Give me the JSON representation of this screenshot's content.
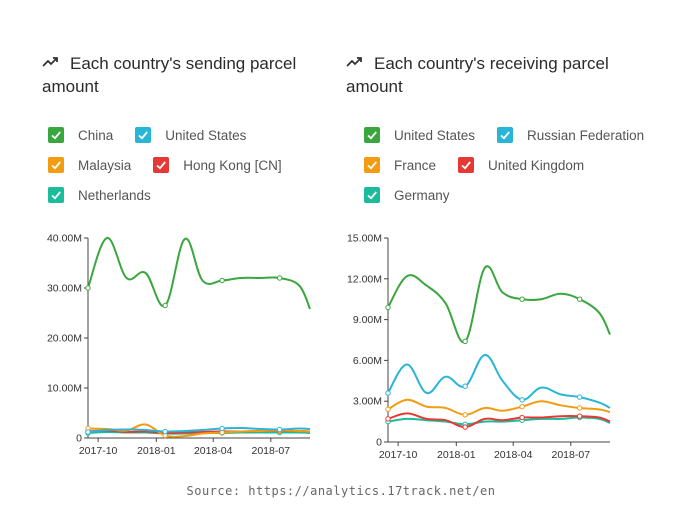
{
  "source_text": "Source: https://analytics.17track.net/en",
  "chart_data": [
    {
      "type": "line",
      "title": "Each country's sending parcel amount",
      "title_icon": "trending-up-icon",
      "x": [
        "2017-09-15",
        "2017-10-15",
        "2017-11-15",
        "2017-12-15",
        "2018-01-15",
        "2018-02-15",
        "2018-03-15",
        "2018-04-15",
        "2018-05-15",
        "2018-06-15",
        "2018-07-15",
        "2018-08-15",
        "2018-09-01"
      ],
      "xticks": [
        "2017-10",
        "2018-01",
        "2018-04",
        "2018-07"
      ],
      "yticks": [
        0,
        10000000,
        20000000,
        30000000,
        40000000
      ],
      "ytick_labels": [
        "0",
        "10.00M",
        "20.00M",
        "30.00M",
        "40.00M"
      ],
      "ylim": [
        0,
        40000000
      ],
      "series": [
        {
          "name": "China",
          "color": "#3aa63e",
          "values": [
            30000000,
            40000000,
            32000000,
            33000000,
            26500000,
            39800000,
            31500000,
            31500000,
            32000000,
            32000000,
            32000000,
            30500000,
            25800000
          ]
        },
        {
          "name": "United States",
          "color": "#29b6d6",
          "values": [
            1200000,
            1600000,
            1700000,
            1600000,
            1300000,
            1400000,
            1600000,
            1900000,
            2000000,
            1800000,
            1700000,
            1900000,
            1800000
          ]
        },
        {
          "name": "Malaysia",
          "color": "#f39c12",
          "values": [
            1900000,
            1800000,
            1500000,
            2700000,
            500000,
            400000,
            900000,
            1100000,
            1300000,
            1400000,
            1500000,
            1400000,
            1300000
          ]
        },
        {
          "name": "Hong Kong [CN]",
          "color": "#e53935",
          "values": [
            1300000,
            1500000,
            1200000,
            1300000,
            1000000,
            1100000,
            1200000,
            1300000,
            1300000,
            1400000,
            1400000,
            1400000,
            1300000
          ]
        },
        {
          "name": "Netherlands",
          "color": "#1abc9c",
          "values": [
            1000000,
            1200000,
            1100000,
            1100000,
            900000,
            900000,
            1000000,
            1000000,
            1100000,
            1100000,
            1100000,
            1100000,
            1000000
          ]
        }
      ],
      "legend_rows": [
        [
          0,
          1
        ],
        [
          2,
          3
        ],
        [
          4
        ]
      ]
    },
    {
      "type": "line",
      "title": "Each country's receiving parcel amount",
      "title_icon": "trending-up-icon",
      "x": [
        "2017-09-15",
        "2017-10-15",
        "2017-11-15",
        "2017-12-15",
        "2018-01-15",
        "2018-02-15",
        "2018-03-15",
        "2018-04-15",
        "2018-05-15",
        "2018-06-15",
        "2018-07-15",
        "2018-08-15",
        "2018-09-01"
      ],
      "xticks": [
        "2017-10",
        "2018-01",
        "2018-04",
        "2018-07"
      ],
      "yticks": [
        0,
        3000000,
        6000000,
        9000000,
        12000000,
        15000000
      ],
      "ytick_labels": [
        "0",
        "3.00M",
        "6.00M",
        "9.00M",
        "12.00M",
        "15.00M"
      ],
      "ylim": [
        0,
        15000000
      ],
      "series": [
        {
          "name": "United States",
          "color": "#3aa63e",
          "values": [
            9900000,
            12200000,
            11500000,
            10200000,
            7400000,
            12800000,
            11000000,
            10500000,
            10500000,
            10900000,
            10500000,
            9500000,
            7900000
          ]
        },
        {
          "name": "Russian Federation",
          "color": "#29b6d6",
          "values": [
            3600000,
            5700000,
            3600000,
            4800000,
            4100000,
            6400000,
            4500000,
            3100000,
            4000000,
            3500000,
            3300000,
            2900000,
            2500000
          ]
        },
        {
          "name": "France",
          "color": "#f39c12",
          "values": [
            2400000,
            3100000,
            2600000,
            2500000,
            2000000,
            2500000,
            2300000,
            2600000,
            3000000,
            2700000,
            2500000,
            2400000,
            2200000
          ]
        },
        {
          "name": "United Kingdom",
          "color": "#e53935",
          "values": [
            1700000,
            2100000,
            1700000,
            1600000,
            1100000,
            1700000,
            1600000,
            1800000,
            1800000,
            1900000,
            1900000,
            1800000,
            1500000
          ]
        },
        {
          "name": "Germany",
          "color": "#1abc9c",
          "values": [
            1500000,
            1700000,
            1600000,
            1500000,
            1300000,
            1500000,
            1500000,
            1600000,
            1700000,
            1700000,
            1800000,
            1700000,
            1400000
          ]
        }
      ],
      "legend_rows": [
        [
          0,
          1
        ],
        [
          2,
          3
        ],
        [
          4
        ]
      ]
    }
  ]
}
